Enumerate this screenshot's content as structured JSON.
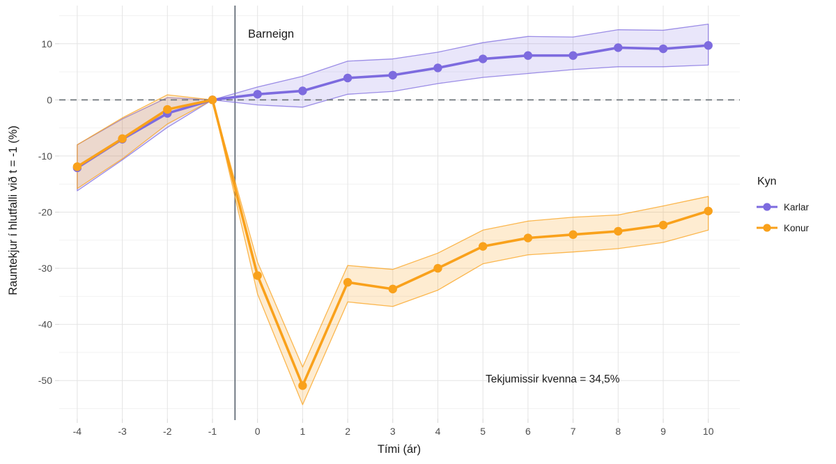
{
  "chart_data": {
    "type": "line",
    "title": "",
    "xlabel": "Tími (ár)",
    "ylabel": "Rauntekjur í hlutfalli við t = -1 (%)",
    "x": [
      -4,
      -3,
      -2,
      -1,
      0,
      1,
      2,
      3,
      4,
      5,
      6,
      7,
      8,
      9,
      10
    ],
    "x_ticks": [
      -4,
      -3,
      -2,
      -1,
      0,
      1,
      2,
      3,
      4,
      5,
      6,
      7,
      8,
      9,
      10
    ],
    "y_ticks": [
      10,
      0,
      -10,
      -20,
      -30,
      -40,
      -50
    ],
    "y_minor_ticks": [
      15,
      5,
      -5,
      -15,
      -25,
      -35,
      -45,
      -55
    ],
    "xlim": [
      -4.4,
      10.7
    ],
    "ylim": [
      -56.8,
      16.8
    ],
    "grid": true,
    "vline": {
      "x": -0.5,
      "label": "Barneign"
    },
    "hline": {
      "y": 0,
      "style": "dashed"
    },
    "annotation": {
      "text": "Tekjumissir kvenna = 34,5%",
      "x": 6.8,
      "y": -50
    },
    "legend": {
      "title": "Kyn",
      "position": "right"
    },
    "series": [
      {
        "name": "Karlar",
        "color": "#7D6BDF",
        "values": [
          -12.1,
          -7.0,
          -2.4,
          0,
          1.0,
          1.6,
          3.9,
          4.4,
          5.7,
          7.3,
          7.9,
          7.9,
          9.3,
          9.1,
          9.7
        ],
        "upper": [
          -8.0,
          -3.4,
          0.4,
          0,
          2.3,
          4.2,
          6.9,
          7.3,
          8.5,
          10.2,
          11.3,
          11.2,
          12.5,
          12.4,
          13.5
        ],
        "lower": [
          -16.2,
          -10.7,
          -4.9,
          0,
          -0.9,
          -1.3,
          1.0,
          1.5,
          2.9,
          4.0,
          4.7,
          5.4,
          5.9,
          5.9,
          6.2
        ]
      },
      {
        "name": "Konur",
        "color": "#F9A11B",
        "values": [
          -11.9,
          -6.9,
          -1.7,
          0,
          -31.3,
          -50.9,
          -32.5,
          -33.7,
          -30.0,
          -26.1,
          -24.6,
          -24.0,
          -23.4,
          -22.3,
          -19.8
        ],
        "upper": [
          -8.0,
          -3.2,
          0.9,
          0,
          -28.9,
          -47.6,
          -29.5,
          -30.2,
          -27.3,
          -23.2,
          -21.6,
          -20.9,
          -20.5,
          -18.9,
          -17.2
        ],
        "lower": [
          -15.8,
          -10.5,
          -4.3,
          0,
          -34.6,
          -54.3,
          -36.0,
          -36.8,
          -33.9,
          -29.2,
          -27.6,
          -27.1,
          -26.5,
          -25.4,
          -23.2
        ]
      }
    ]
  }
}
